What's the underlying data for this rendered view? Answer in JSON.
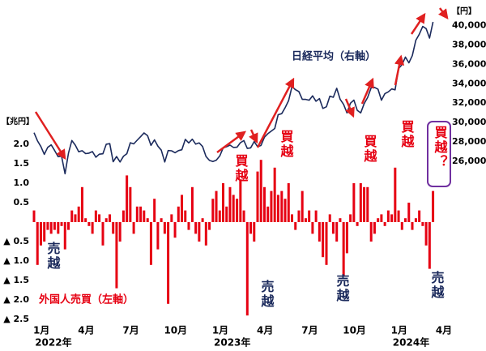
{
  "chart_data": {
    "type": "bar_line",
    "left_axis_label": "【兆円】",
    "right_axis_label": "【円】",
    "xlim": [
      0,
      27.5
    ],
    "xticks": [
      {
        "value": 0.5,
        "label": "1月"
      },
      {
        "value": 3.5,
        "label": "4月"
      },
      {
        "value": 6.5,
        "label": "7月"
      },
      {
        "value": 9.5,
        "label": "10月"
      },
      {
        "value": 12.5,
        "label": "1月"
      },
      {
        "value": 15.5,
        "label": "4月"
      },
      {
        "value": 18.5,
        "label": "7月"
      },
      {
        "value": 21.5,
        "label": "10月"
      },
      {
        "value": 24.5,
        "label": "1月"
      },
      {
        "value": 27.5,
        "label": "4月"
      }
    ],
    "year_labels": [
      "2022年",
      "2023年",
      "2024年"
    ],
    "ylim": [
      -2.6,
      5.5
    ],
    "yticks": [
      {
        "value": 2,
        "label": "2.0"
      },
      1.5,
      {
        "value": 1,
        "label": "1.0"
      },
      0.5,
      {
        "value": -0.5,
        "label": "▲ 0.5"
      },
      {
        "value": -1,
        "label": "▲ 1.0"
      },
      {
        "value": -1.5,
        "label": "▲ 1.5"
      },
      {
        "value": -2,
        "label": "▲ 2.0"
      },
      {
        "value": -2.5,
        "label": "▲ 2.5"
      }
    ],
    "y2lim": [
      9300,
      41800
    ],
    "y2ticks": [
      {
        "value": 26000,
        "label": "26,000"
      },
      {
        "value": 28000,
        "label": "28,000"
      },
      {
        "value": 30000,
        "label": "30,000"
      },
      {
        "value": 32000,
        "label": "32,000"
      },
      {
        "value": 34000,
        "label": "34,000"
      },
      {
        "value": 36000,
        "label": "36,000"
      },
      {
        "value": 38000,
        "label": "38,000"
      },
      {
        "value": 40000,
        "label": "40,000"
      }
    ],
    "x": [
      0,
      0.23,
      0.46,
      0.69,
      0.92,
      1.15,
      1.38,
      1.62,
      1.85,
      2.08,
      2.31,
      2.54,
      2.77,
      3,
      3.23,
      3.46,
      3.69,
      3.92,
      4.15,
      4.38,
      4.62,
      4.85,
      5.08,
      5.31,
      5.54,
      5.77,
      6,
      6.23,
      6.46,
      6.69,
      6.92,
      7.15,
      7.38,
      7.62,
      7.85,
      8.08,
      8.31,
      8.54,
      8.77,
      9,
      9.23,
      9.46,
      9.69,
      9.92,
      10.15,
      10.38,
      10.62,
      10.85,
      11.08,
      11.31,
      11.54,
      11.77,
      12,
      12.23,
      12.46,
      12.69,
      12.92,
      13.15,
      13.38,
      13.62,
      13.85,
      14.08,
      14.31,
      14.54,
      14.77,
      15,
      15.23,
      15.46,
      15.69,
      15.92,
      16.15,
      16.38,
      16.62,
      16.85,
      17.08,
      17.31,
      17.54,
      17.77,
      18,
      18.23,
      18.46,
      18.69,
      18.92,
      19.15,
      19.38,
      19.62,
      19.85,
      20.08,
      20.31,
      20.54,
      20.77,
      21,
      21.23,
      21.46,
      21.69,
      21.92,
      22.15,
      22.38,
      22.62,
      22.85,
      23.08,
      23.31,
      23.54,
      23.77,
      24,
      24.23,
      24.46,
      24.69,
      24.92,
      25.15,
      25.38,
      25.62,
      25.85,
      26.08,
      26.31,
      26.54,
      26.77
    ],
    "series": [
      {
        "name": "外国人売買（左軸）",
        "color": "#e60012",
        "axis": "y",
        "values": [
          0.3,
          -1.1,
          -0.6,
          -0.5,
          -0.2,
          -0.3,
          -0.2,
          -0.3,
          -0.1,
          -0.7,
          -0.2,
          0.3,
          0.2,
          0.4,
          0.9,
          0.1,
          -0.1,
          -0.3,
          0.3,
          0.2,
          -0.6,
          0.1,
          0.2,
          -0.3,
          -1.7,
          -0.5,
          0.3,
          1.2,
          0.9,
          -0.3,
          0.4,
          0.4,
          0.3,
          0.1,
          -1.1,
          0.6,
          -0.7,
          0.1,
          -0.3,
          -2.1,
          0.2,
          -0.4,
          0.4,
          0.7,
          0.3,
          -0.2,
          0.9,
          -0.3,
          -0.5,
          0.1,
          -0.6,
          -0.2,
          0.6,
          0.8,
          0.3,
          1.0,
          0.4,
          0.9,
          0.7,
          0.6,
          1.1,
          0.3,
          -2.4,
          -0.3,
          -0.5,
          1.3,
          1.6,
          0.9,
          0.4,
          0.8,
          1.4,
          0.7,
          0.8,
          0.6,
          1.0,
          0.2,
          -0.2,
          0.3,
          0.8,
          0.1,
          0.3,
          -0.3,
          0.3,
          -0.5,
          -0.9,
          -1.1,
          0.2,
          -0.3,
          -0.5,
          0.1,
          -1.4,
          -0.8,
          0.2,
          1.0,
          -0.1,
          1.0,
          0.9,
          0.9,
          -0.5,
          -0.3,
          0.1,
          0.2,
          -0.1,
          0.3,
          0.2,
          1.4,
          0.3,
          -0.2,
          0.1,
          0.5,
          -0.2,
          0.1,
          0.3,
          -0.1,
          -0.6,
          -1.2,
          0.8
        ]
      },
      {
        "name": "日経平均（右軸）",
        "color": "#1b2a5c",
        "axis": "y2",
        "values": [
          28950,
          28124,
          27522,
          26717,
          27440,
          27696,
          27122,
          26476,
          26527,
          24717,
          26827,
          28149,
          27666,
          26985,
          27093,
          26799,
          26847,
          27003,
          26427,
          26739,
          26781,
          27761,
          27824,
          25963,
          26491,
          25935,
          26517,
          26788,
          27914,
          27801,
          28175,
          28546,
          28930,
          28641,
          27650,
          28214,
          27567,
          27153,
          25937,
          27116,
          27090,
          26890,
          27105,
          27199,
          28263,
          27899,
          28283,
          27777,
          27901,
          27527,
          26507,
          26094,
          25973,
          26119,
          26553,
          27383,
          27509,
          27671,
          27427,
          27453,
          27927,
          28144,
          27334,
          27385,
          28041,
          27518,
          27633,
          28493,
          28856,
          29123,
          29388,
          30808,
          30916,
          31524,
          32265,
          33706,
          33388,
          33189,
          32388,
          32391,
          32304,
          32759,
          32192,
          32473,
          31450,
          31624,
          32710,
          32606,
          33533,
          32402,
          31872,
          30994,
          31994,
          32316,
          31259,
          30991,
          31950,
          32568,
          33585,
          33625,
          33431,
          32307,
          32970,
          33169,
          33464,
          33377,
          35577,
          35963,
          36751,
          36158,
          36897,
          38487,
          39098,
          39910,
          39688,
          38707,
          40369
        ]
      }
    ],
    "annotations": [
      "売越",
      "売越",
      "売越",
      "売越",
      "買越",
      "買越",
      "買越",
      "買越",
      "買越？"
    ]
  }
}
